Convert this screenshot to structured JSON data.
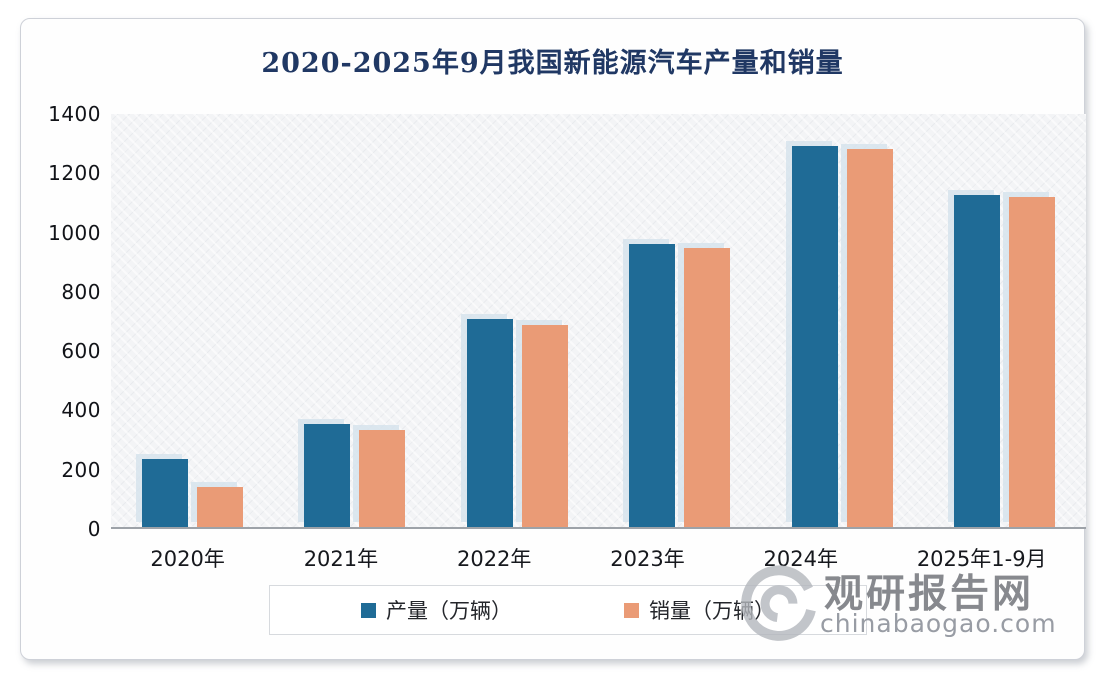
{
  "title": "2020-2025年9月我国新能源汽车产量和销量",
  "chart_data": {
    "type": "bar",
    "title": "2020-2025年9月我国新能源汽车产量和销量",
    "categories": [
      "2020年",
      "2021年",
      "2022年",
      "2023年",
      "2024年",
      "2025年1-9月"
    ],
    "series": [
      {
        "name": "产量（万辆）",
        "color": "#1f6b96",
        "values": [
          230,
          350,
          705,
          960,
          1290,
          1125
        ]
      },
      {
        "name": "销量（万辆）",
        "color": "#ea9b76",
        "values": [
          135,
          330,
          685,
          945,
          1280,
          1120
        ]
      }
    ],
    "xlabel": "",
    "ylabel": "",
    "ylim": [
      0,
      1400
    ],
    "yticks": [
      0,
      200,
      400,
      600,
      800,
      1000,
      1200,
      1400
    ],
    "grid": false,
    "legend_position": "bottom"
  },
  "watermark": {
    "site_name": "观研报告网",
    "site_url": "chinabaogao.com",
    "logo": "swirl-logo",
    "color": "#87898e"
  },
  "colors": {
    "title_text": "#203864",
    "production_bar": "#1f6b96",
    "sales_bar": "#ea9b76",
    "axis_line": "#9da2a8",
    "panel_bg": "#f3f4f6"
  }
}
